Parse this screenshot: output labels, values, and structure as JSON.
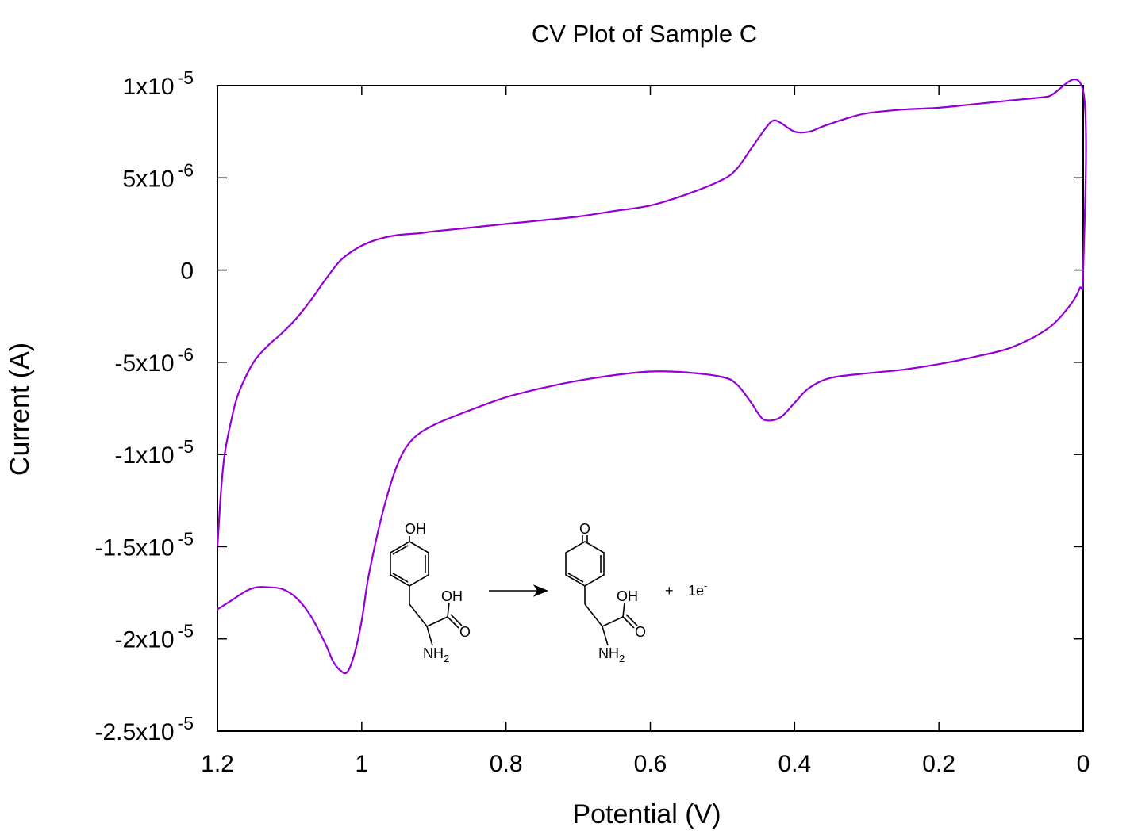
{
  "chart_data": {
    "type": "line",
    "title": "CV Plot of Sample C",
    "xlabel": "Potential (V)",
    "ylabel": "Current (A)",
    "xlim": [
      1.2,
      0
    ],
    "ylim": [
      -2.5e-05,
      1e-05
    ],
    "x_axis_reversed": true,
    "grid": false,
    "legend": "none",
    "line_color": "#9400d3",
    "x_ticks": [
      {
        "value": 1.2,
        "label": "1.2"
      },
      {
        "value": 1.0,
        "label": "1"
      },
      {
        "value": 0.8,
        "label": "0.8"
      },
      {
        "value": 0.6,
        "label": "0.6"
      },
      {
        "value": 0.4,
        "label": "0.4"
      },
      {
        "value": 0.2,
        "label": "0.2"
      },
      {
        "value": 0.0,
        "label": "0"
      }
    ],
    "y_ticks": [
      {
        "value": 1e-05,
        "mantissa": "1x10",
        "exponent": "-5"
      },
      {
        "value": 5e-06,
        "mantissa": "5x10",
        "exponent": "-6"
      },
      {
        "value": 0,
        "mantissa": "0",
        "exponent": ""
      },
      {
        "value": -5e-06,
        "mantissa": "-5x10",
        "exponent": "-6"
      },
      {
        "value": -1e-05,
        "mantissa": "-1x10",
        "exponent": "-5"
      },
      {
        "value": -1.5e-05,
        "mantissa": "-1.5x10",
        "exponent": "-5"
      },
      {
        "value": -2e-05,
        "mantissa": "-2x10",
        "exponent": "-5"
      },
      {
        "value": -2.5e-05,
        "mantissa": "-2.5x10",
        "exponent": "-5"
      }
    ],
    "series": [
      {
        "x": [
          1.2,
          1.195,
          1.19,
          1.18,
          1.17,
          1.15,
          1.13,
          1.11,
          1.09,
          1.07,
          1.05,
          1.03,
          1.01,
          0.99,
          0.97,
          0.95,
          0.92,
          0.9,
          0.85,
          0.8,
          0.75,
          0.7,
          0.65,
          0.6,
          0.55,
          0.5,
          0.48,
          0.46,
          0.44,
          0.43,
          0.42,
          0.4,
          0.38,
          0.36,
          0.33,
          0.3,
          0.25,
          0.2,
          0.15,
          0.1,
          0.05,
          0.0,
          0.0,
          0.005,
          0.02,
          0.05,
          0.1,
          0.15,
          0.2,
          0.25,
          0.3,
          0.35,
          0.38,
          0.4,
          0.42,
          0.44,
          0.45,
          0.46,
          0.48,
          0.5,
          0.55,
          0.6,
          0.65,
          0.7,
          0.75,
          0.8,
          0.85,
          0.9,
          0.93,
          0.95,
          0.97,
          0.99,
          1.0,
          1.01,
          1.02,
          1.03,
          1.04,
          1.05,
          1.07,
          1.09,
          1.11,
          1.13,
          1.145,
          1.16,
          1.18,
          1.2
        ],
        "y": [
          -1.5e-05,
          -1.2e-05,
          -1e-05,
          -8e-06,
          -6.6e-06,
          -5e-06,
          -4.1e-06,
          -3.4e-06,
          -2.6e-06,
          -1.6e-06,
          -5e-07,
          5e-07,
          1.1e-06,
          1.5e-06,
          1.75e-06,
          1.9e-06,
          2e-06,
          2.1e-06,
          2.3e-06,
          2.5e-06,
          2.7e-06,
          2.9e-06,
          3.2e-06,
          3.5e-06,
          4.1e-06,
          4.9e-06,
          5.5e-06,
          6.6e-06,
          7.7e-06,
          8.1e-06,
          8e-06,
          7.5e-06,
          7.5e-06,
          7.8e-06,
          8.2e-06,
          8.5e-06,
          8.7e-06,
          8.8e-06,
          9e-06,
          9.2e-06,
          9.4e-06,
          9.7e-06,
          0.0,
          -1e-06,
          -2e-06,
          -3.2e-06,
          -4.2e-06,
          -4.7e-06,
          -5.1e-06,
          -5.4e-06,
          -5.6e-06,
          -5.85e-06,
          -6.4e-06,
          -7.2e-06,
          -8e-06,
          -8.15e-06,
          -7.8e-06,
          -7.2e-06,
          -6.2e-06,
          -5.8e-06,
          -5.55e-06,
          -5.5e-06,
          -5.7e-06,
          -6e-06,
          -6.4e-06,
          -6.9e-06,
          -7.6e-06,
          -8.4e-06,
          -9.2e-06,
          -1.05e-05,
          -1.3e-05,
          -1.65e-05,
          -1.9e-05,
          -2.08e-05,
          -2.18e-05,
          -2.17e-05,
          -2.12e-05,
          -2.03e-05,
          -1.88e-05,
          -1.78e-05,
          -1.73e-05,
          -1.72e-05,
          -1.72e-05,
          -1.74e-05,
          -1.79e-05,
          -1.84e-05
        ]
      }
    ]
  },
  "scheme": {
    "reactant_oh": "OH",
    "reactant_acid_oh": "OH",
    "reactant_acid_o": "O",
    "reactant_nh": "NH",
    "reactant_nh_sub": "2",
    "product_o": "O",
    "product_acid_oh": "OH",
    "product_acid_o": "O",
    "product_nh": "NH",
    "product_nh_sub": "2",
    "plus": "+",
    "electron": "1e",
    "electron_sup": "-"
  }
}
